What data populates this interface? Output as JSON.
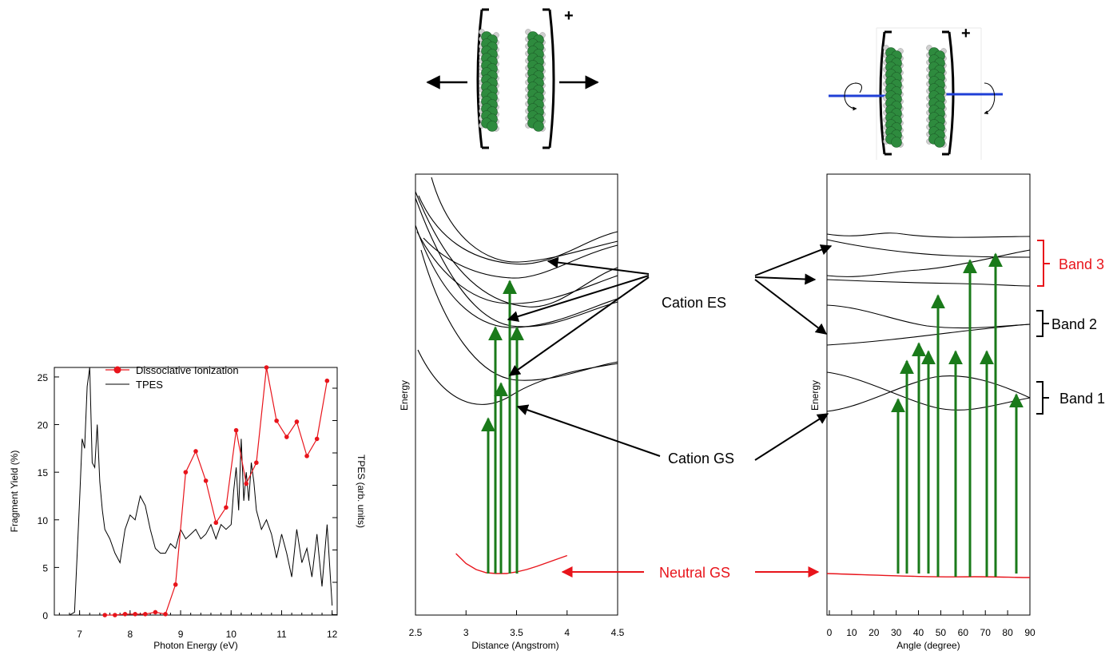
{
  "chart_data": [
    {
      "type": "line",
      "name": "fragment-yield-tpes",
      "xlabel": "Photon Energy (eV)",
      "ylabel": "Fragment Yield (%)",
      "y2label": "TPES (arb. units)",
      "xlim": [
        6.5,
        12.1
      ],
      "ylim": [
        0,
        26
      ],
      "x_ticks": [
        7,
        8,
        9,
        10,
        11,
        12
      ],
      "y_ticks": [
        0,
        5,
        10,
        15,
        20,
        25
      ],
      "legend": {
        "position": "top-left",
        "entries": [
          "Dissociative Ionization",
          "TPES"
        ]
      },
      "series": [
        {
          "name": "Dissociative Ionization",
          "color": "#e8141b",
          "marker": "circle",
          "x": [
            7.5,
            7.7,
            7.9,
            8.1,
            8.3,
            8.5,
            8.7,
            8.9,
            9.1,
            9.3,
            9.5,
            9.7,
            9.9,
            10.1,
            10.3,
            10.5,
            10.7,
            10.9,
            11.1,
            11.3,
            11.5,
            11.7,
            11.9
          ],
          "y": [
            0.0,
            0.0,
            0.1,
            0.1,
            0.1,
            0.3,
            0.1,
            3.2,
            15.0,
            17.2,
            14.1,
            9.7,
            11.3,
            19.4,
            13.8,
            16.0,
            26.0,
            20.4,
            18.7,
            20.3,
            16.7,
            18.5,
            24.6
          ]
        },
        {
          "name": "TPES",
          "color": "#000000",
          "x": [
            6.5,
            6.8,
            6.9,
            7.0,
            7.05,
            7.1,
            7.15,
            7.2,
            7.25,
            7.3,
            7.35,
            7.4,
            7.45,
            7.5,
            7.6,
            7.7,
            7.8,
            7.9,
            8.0,
            8.1,
            8.2,
            8.3,
            8.4,
            8.5,
            8.6,
            8.7,
            8.8,
            8.9,
            9.0,
            9.1,
            9.2,
            9.3,
            9.4,
            9.5,
            9.6,
            9.7,
            9.8,
            9.9,
            10.0,
            10.05,
            10.1,
            10.15,
            10.2,
            10.25,
            10.3,
            10.35,
            10.4,
            10.45,
            10.5,
            10.6,
            10.7,
            10.8,
            10.9,
            11.0,
            11.1,
            11.2,
            11.3,
            11.4,
            11.5,
            11.6,
            11.7,
            11.8,
            11.9,
            12.0
          ],
          "y": [
            0.0,
            0.0,
            0.3,
            12.0,
            18.5,
            17.5,
            24.0,
            26.0,
            16.0,
            15.5,
            20.0,
            14.0,
            11.0,
            9.0,
            8.0,
            6.5,
            5.5,
            9.0,
            10.5,
            10.0,
            12.5,
            11.5,
            9.0,
            7.0,
            6.5,
            6.5,
            7.5,
            7.0,
            9.0,
            8.0,
            8.5,
            9.0,
            8.0,
            8.5,
            9.5,
            8.0,
            9.5,
            9.0,
            9.5,
            13.0,
            15.5,
            11.0,
            18.5,
            12.0,
            15.0,
            12.0,
            16.0,
            14.0,
            11.0,
            9.0,
            10.0,
            8.5,
            6.0,
            8.5,
            6.5,
            4.0,
            9.0,
            5.5,
            7.0,
            4.0,
            8.5,
            3.0,
            9.5,
            1.0
          ]
        }
      ]
    },
    {
      "type": "line",
      "name": "pes-distance",
      "xlabel": "Distance (Angstrom)",
      "ylabel": "Energy",
      "xlim": [
        2.5,
        4.5
      ],
      "x_ticks": [
        2.5,
        3.0,
        3.5,
        4.0,
        4.5
      ],
      "x_tick_labels": [
        "2.5",
        "3",
        "3.5",
        "4",
        "4.5"
      ],
      "neutral_gs": {
        "x": [
          2.9,
          3.0,
          3.1,
          3.2,
          3.3,
          3.4,
          3.5,
          3.6,
          3.7,
          3.8,
          3.9,
          4.0
        ],
        "e": [
          0.6,
          0.35,
          0.2,
          0.12,
          0.1,
          0.1,
          0.14,
          0.2,
          0.28,
          0.37,
          0.46,
          0.55
        ]
      }
    },
    {
      "type": "line",
      "name": "pes-angle",
      "xlabel": "Angle (degree)",
      "ylabel": "Energy",
      "xlim": [
        0,
        90
      ],
      "x_ticks": [
        0,
        10,
        20,
        30,
        40,
        50,
        60,
        70,
        80,
        90
      ]
    }
  ],
  "labels": {
    "plus_sign": "+",
    "cation_es": "Cation ES",
    "cation_gs": "Cation GS",
    "neutral_gs": "Neutral GS",
    "band1": "Band 1",
    "band2": "Band 2",
    "band3": "Band 3"
  },
  "colors": {
    "red": "#e8141b",
    "green": "#1a7a1a",
    "blue": "#1f3fd6",
    "carbon": "#2e8b3e",
    "hydrogen": "#cfcfcf"
  }
}
